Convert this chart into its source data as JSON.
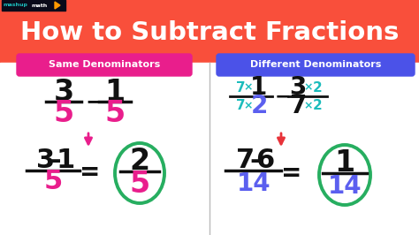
{
  "title": "How to Subtract Fractions",
  "bg_color": "#F94F3B",
  "panel_bg": "#FFFFFF",
  "left_label": "Same Denominators",
  "right_label": "Different Denominators",
  "left_label_bg": "#E91E8C",
  "right_label_bg": "#4B52E8",
  "label_text_color": "#FFFFFF",
  "pink": "#E91E8C",
  "teal": "#1BBCBC",
  "blue_denom": "#5B5FEF",
  "black": "#111111",
  "green": "#27AE60",
  "red_arrow": "#E8333A",
  "logo_bg": "#0A0A1A",
  "logo_mashup": "#1BBCBC",
  "logo_math": "#FFFFFF",
  "orange_play": "#FF9900"
}
